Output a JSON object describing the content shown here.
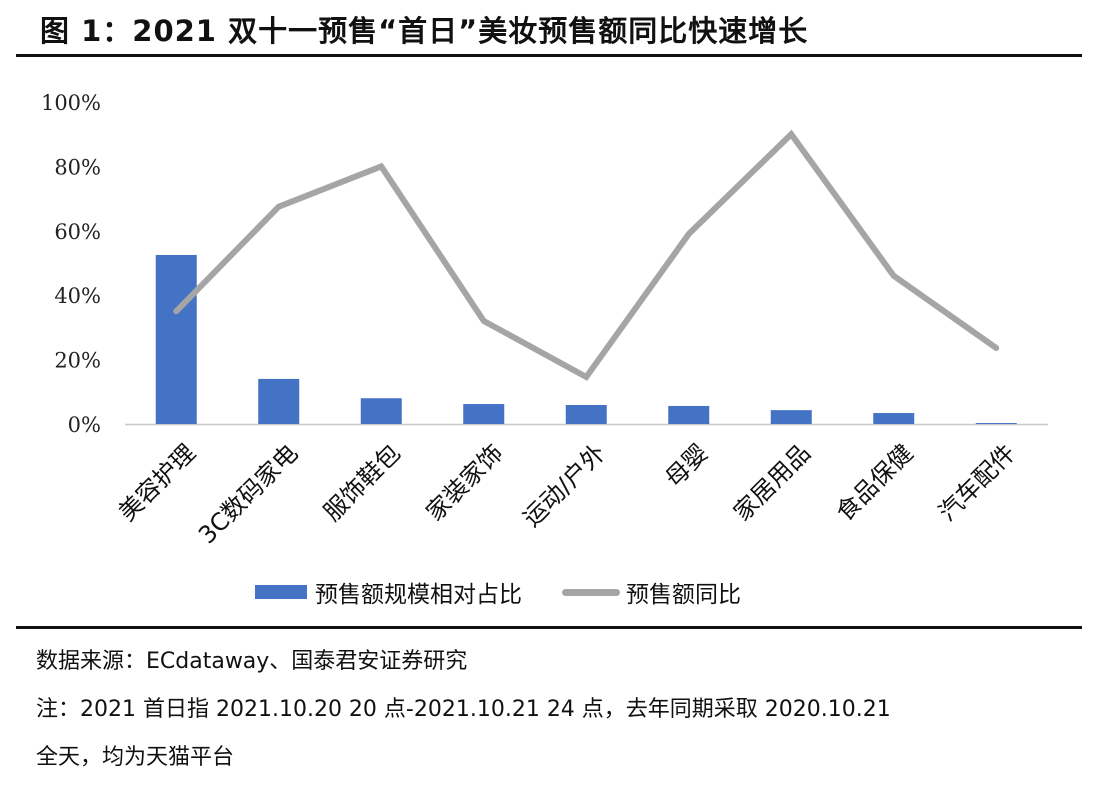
{
  "figure": {
    "title": "图 1：2021 双十一预售“首日”美妆预售额同比快速增长",
    "source": "数据来源：ECdataway、国泰君安证券研究",
    "note_line1": "注：2021 首日指 2021.10.20 20 点-2021.10.21 24 点，去年同期采取 2020.10.21",
    "note_line2": "全天，均为天猫平台"
  },
  "legend": {
    "bar_label": "预售额规模相对占比",
    "line_label": "预售额同比"
  },
  "colors": {
    "bar": "#4472c4",
    "line": "#a5a5a5",
    "axis": "#c8c8c8"
  },
  "chart_data": {
    "type": "bar+line",
    "title": "2021 双十一预售“首日”美妆预售额同比快速增长",
    "xlabel": "",
    "ylabel": "",
    "ylim": [
      0,
      100
    ],
    "yticks": [
      "0%",
      "20%",
      "40%",
      "60%",
      "80%",
      "100%"
    ],
    "grid": false,
    "legend_position": "bottom",
    "categories": [
      "美容护理",
      "3C数码家电",
      "服饰鞋包",
      "家装家饰",
      "运动/户外",
      "母婴",
      "家居用品",
      "食品保健",
      "汽车配件"
    ],
    "series": [
      {
        "name": "预售额规模相对占比",
        "type": "bar",
        "unit": "%",
        "values": [
          52.5,
          14.0,
          8.0,
          6.2,
          5.9,
          5.6,
          4.3,
          3.4,
          0.3
        ]
      },
      {
        "name": "预售额同比",
        "type": "line",
        "unit": "%",
        "values": [
          35.0,
          67.5,
          80.0,
          32.0,
          14.6,
          59.0,
          90.0,
          46.0,
          23.6
        ]
      }
    ]
  }
}
